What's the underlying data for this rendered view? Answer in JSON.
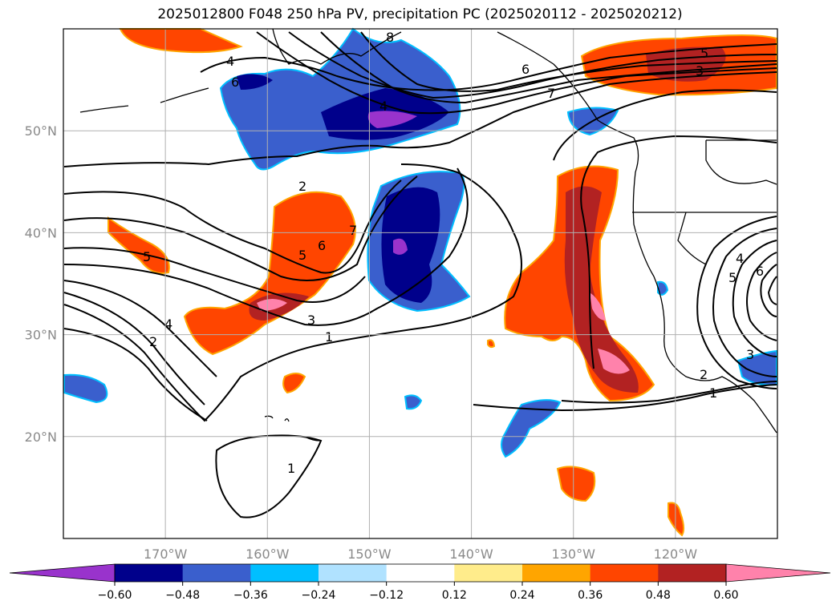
{
  "title": "2025012800 F048 250 hPa PV, precipitation PC (2025020112 - 2025020212)",
  "map": {
    "lon_range": [
      -180,
      -110
    ],
    "lat_range": [
      10,
      60
    ],
    "lon_ticks": [
      {
        "lon": -170,
        "label": "170°W"
      },
      {
        "lon": -160,
        "label": "160°W"
      },
      {
        "lon": -150,
        "label": "150°W"
      },
      {
        "lon": -140,
        "label": "140°W"
      },
      {
        "lon": -130,
        "label": "130°W"
      },
      {
        "lon": -120,
        "label": "120°W"
      }
    ],
    "lat_ticks": [
      {
        "lat": 20,
        "label": "20°N"
      },
      {
        "lat": 30,
        "label": "30°N"
      },
      {
        "lat": 40,
        "label": "40°N"
      },
      {
        "lat": 50,
        "label": "50°N"
      }
    ],
    "gridlines": true,
    "contour_labels": [
      "1",
      "2",
      "3",
      "4",
      "5",
      "6",
      "7",
      "8",
      "1",
      "2",
      "3",
      "4",
      "5",
      "6",
      "5",
      "3",
      "4",
      "2",
      "1",
      "6",
      "7",
      "4",
      "5",
      "6",
      "3",
      "2",
      "1"
    ]
  },
  "colorbar": {
    "boundaries": [
      "−0.60",
      "−0.48",
      "−0.36",
      "−0.24",
      "−0.12",
      "0.12",
      "0.24",
      "0.36",
      "0.48",
      "0.60"
    ],
    "colors": [
      "#9933cc",
      "#00008b",
      "#3a5fcd",
      "#00bfff",
      "#b0e2ff",
      "#ffffff",
      "#ffec8b",
      "#ffa500",
      "#ff4500",
      "#b22222",
      "#ff82ab"
    ],
    "extend": "both",
    "position": "bottom"
  }
}
